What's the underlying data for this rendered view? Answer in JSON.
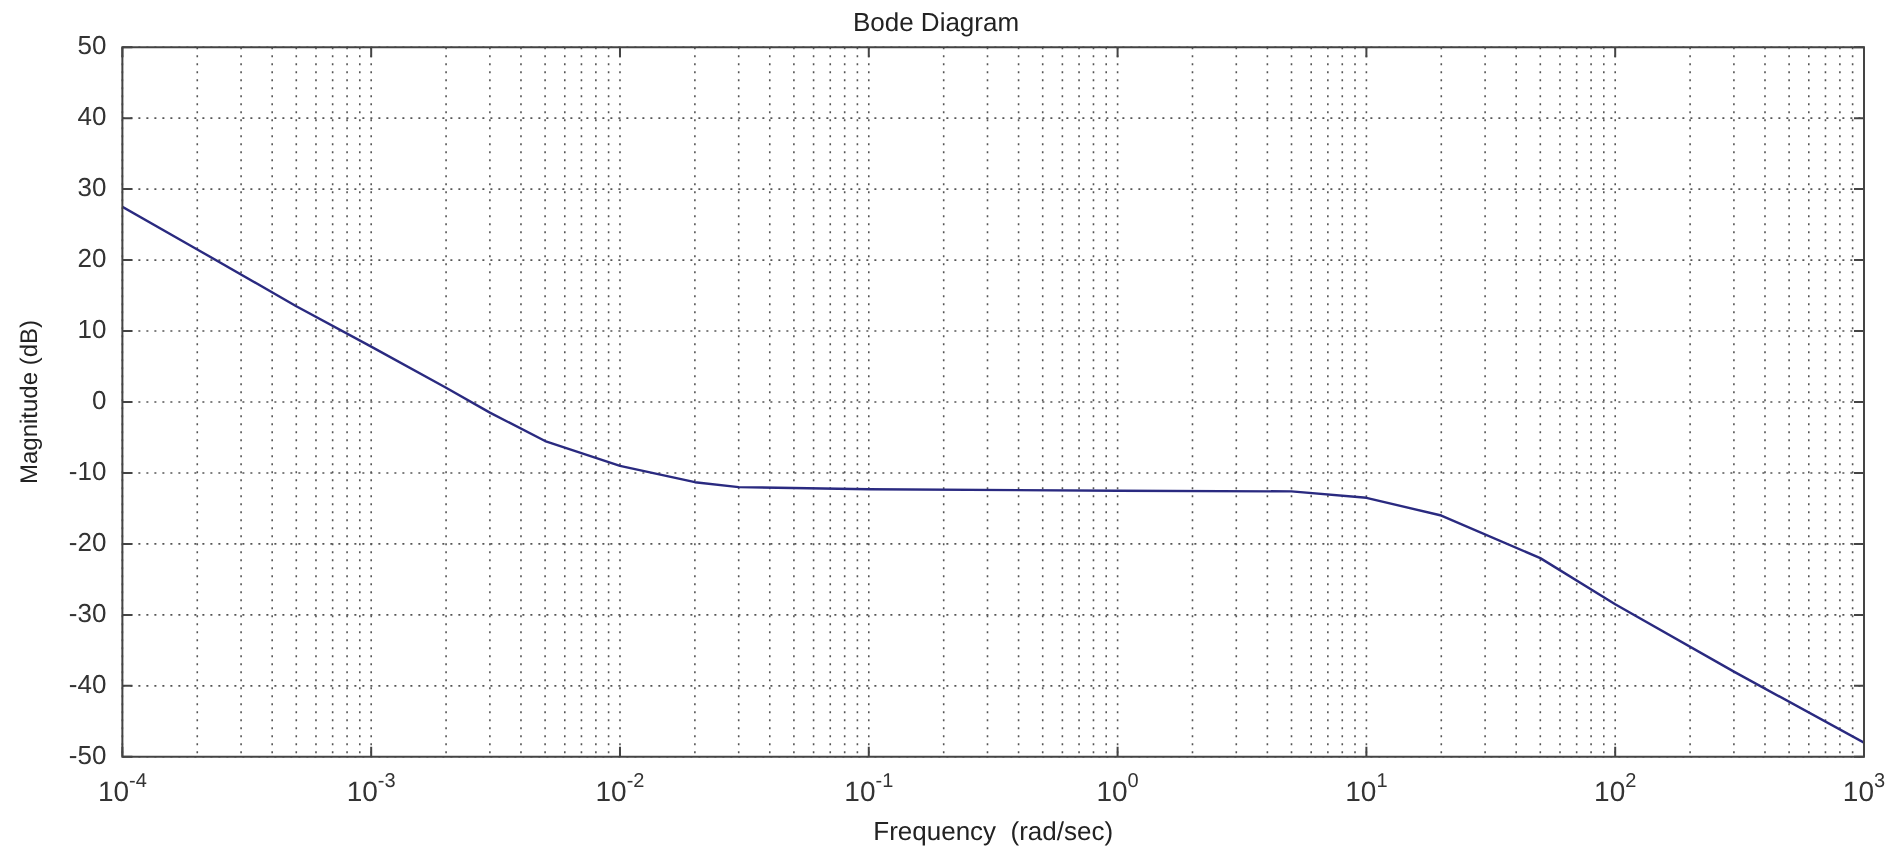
{
  "chart_data": {
    "type": "line",
    "title": "Bode Diagram",
    "xlabel": "Frequency  (rad/sec)",
    "ylabel": "Magnitude (dB)",
    "log": "x",
    "grid": true,
    "legend": false,
    "marker": "none",
    "line_style": "solid",
    "xlim": [
      0.0001,
      1000
    ],
    "ylim": [
      -50,
      50
    ],
    "xticks": [
      {
        "value": 0.0001,
        "label": "10$^{-4}$"
      },
      {
        "value": 0.001,
        "label": "10$^{-3}$"
      },
      {
        "value": 0.01,
        "label": "10$^{-2}$"
      },
      {
        "value": 0.1,
        "label": "10$^{-1}$"
      },
      {
        "value": 1,
        "label": "10$^{0}$"
      },
      {
        "value": 10,
        "label": "10$^{1}$"
      },
      {
        "value": 100,
        "label": "10$^{2}$"
      },
      {
        "value": 1000,
        "label": "10$^{3}$"
      }
    ],
    "yticks": [
      -50,
      -40,
      -30,
      -20,
      -10,
      0,
      10,
      20,
      30,
      40,
      50
    ],
    "x": [
      0.0001,
      0.0002,
      0.0005,
      0.001,
      0.002,
      0.003,
      0.005,
      0.01,
      0.02,
      0.03,
      0.1,
      1,
      5,
      10,
      20,
      50,
      100,
      300,
      1000
    ],
    "series": [
      {
        "color": "#2a2a80",
        "values": [
          27.5,
          21.5,
          13.5,
          7.8,
          2,
          -1.5,
          -5.5,
          -9,
          -11.3,
          -12,
          -12.3,
          -12.5,
          -12.6,
          -13.5,
          -16,
          -22,
          -28.5,
          -38,
          -48
        ]
      }
    ]
  }
}
